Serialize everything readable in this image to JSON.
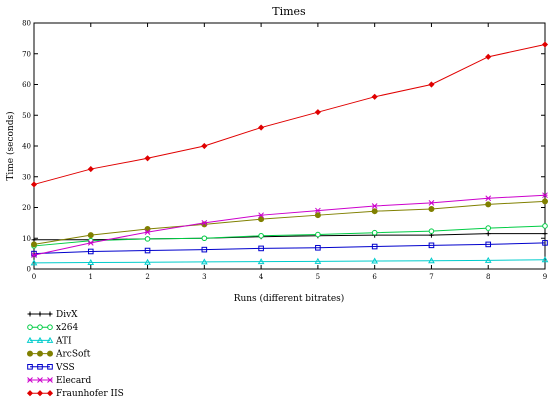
{
  "chart_data": {
    "type": "line",
    "title": "Times",
    "xlabel": "Runs (different bitrates)",
    "ylabel": "Time (seconds)",
    "xlim": [
      0,
      9
    ],
    "ylim": [
      0,
      80
    ],
    "x_ticks": [
      0,
      1,
      2,
      3,
      4,
      5,
      6,
      7,
      8,
      9
    ],
    "y_ticks": [
      0,
      10,
      20,
      30,
      40,
      50,
      60,
      70,
      80
    ],
    "x": [
      0,
      1,
      2,
      3,
      4,
      5,
      6,
      7,
      8,
      9
    ],
    "grid": false,
    "legend_position": "below-left",
    "series": [
      {
        "name": "DivX",
        "color": "#000000",
        "marker": "plus-dot",
        "values": [
          9.5,
          9.5,
          9.8,
          10.0,
          10.5,
          10.8,
          11.0,
          11.0,
          11.5,
          11.5
        ]
      },
      {
        "name": "x264",
        "color": "#00cc44",
        "marker": "circle-open",
        "values": [
          7.5,
          9.2,
          9.8,
          10.0,
          10.8,
          11.2,
          11.8,
          12.3,
          13.3,
          14.0
        ]
      },
      {
        "name": "ATI",
        "color": "#00cccc",
        "marker": "triangle",
        "values": [
          2.0,
          2.1,
          2.2,
          2.3,
          2.4,
          2.5,
          2.6,
          2.7,
          2.8,
          3.0
        ]
      },
      {
        "name": "ArcSoft",
        "color": "#808000",
        "marker": "circle-filled",
        "values": [
          8.0,
          11.0,
          13.0,
          14.5,
          16.2,
          17.5,
          18.8,
          19.5,
          21.0,
          22.0
        ]
      },
      {
        "name": "VSS",
        "color": "#0000cc",
        "marker": "square",
        "values": [
          5.0,
          5.7,
          6.0,
          6.3,
          6.7,
          6.9,
          7.3,
          7.7,
          8.0,
          8.5
        ]
      },
      {
        "name": "Elecard",
        "color": "#cc00cc",
        "marker": "x",
        "values": [
          4.5,
          8.5,
          12.0,
          15.0,
          17.5,
          19.0,
          20.5,
          21.5,
          23.0,
          24.0
        ]
      },
      {
        "name": "Fraunhofer IIS",
        "color": "#e00000",
        "marker": "diamond",
        "values": [
          27.5,
          32.5,
          36.0,
          40.0,
          46.0,
          51.0,
          56.0,
          60.0,
          69.0,
          73.0
        ]
      }
    ]
  }
}
